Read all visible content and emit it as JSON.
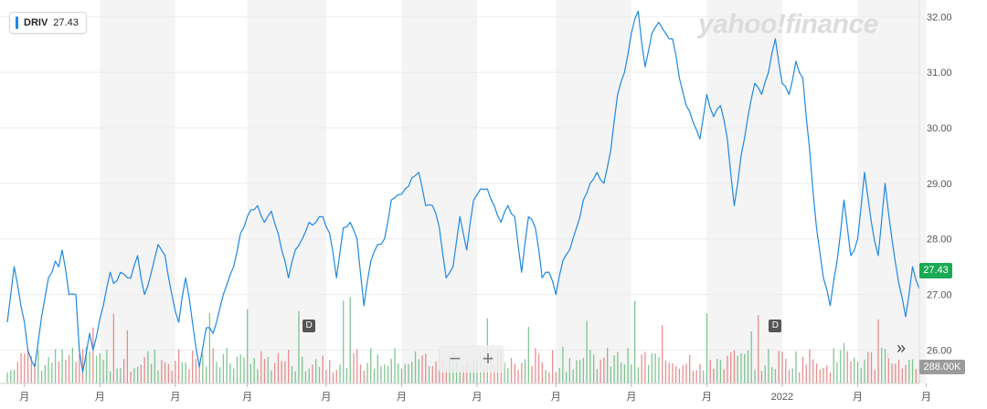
{
  "legend": {
    "symbol": "DRIV",
    "value": "27.43",
    "color": "#1e88e5"
  },
  "watermark": "yahoo!finance",
  "price_tag": "27.43",
  "volume_tag": "288.00K",
  "controls": {
    "zoom_out": "−",
    "zoom_in": "+",
    "fast_forward": "»"
  },
  "dividend_markers": [
    {
      "label": "D",
      "index": 88
    },
    {
      "label": "D",
      "index": 224
    }
  ],
  "chart_data": {
    "type": "line",
    "title": "",
    "xlabel": "",
    "ylabel": "",
    "ylim": [
      25.4,
      32.3
    ],
    "y_ticks": [
      "26.00",
      "27.00",
      "28.00",
      "29.00",
      "30.00",
      "31.00",
      "32.00"
    ],
    "x_ticks": [
      {
        "label": "月",
        "index": 5
      },
      {
        "label": "月",
        "index": 27
      },
      {
        "label": "月",
        "index": 49
      },
      {
        "label": "月",
        "index": 70
      },
      {
        "label": "月",
        "index": 93
      },
      {
        "label": "月",
        "index": 115
      },
      {
        "label": "月",
        "index": 137
      },
      {
        "label": "月",
        "index": 160
      },
      {
        "label": "月",
        "index": 182
      },
      {
        "label": "月",
        "index": 204
      },
      {
        "label": "2022",
        "index": 226
      },
      {
        "label": "月",
        "index": 248
      },
      {
        "label": "月",
        "index": 268
      }
    ],
    "keypoints": [
      [
        0,
        26.5
      ],
      [
        2,
        27.5
      ],
      [
        5,
        26.5
      ],
      [
        6,
        26.0
      ],
      [
        8,
        25.7
      ],
      [
        10,
        26.6
      ],
      [
        12,
        27.3
      ],
      [
        14,
        27.6
      ],
      [
        15,
        27.5
      ],
      [
        16,
        27.8
      ],
      [
        18,
        27.0
      ],
      [
        20,
        27.0
      ],
      [
        21,
        26.0
      ],
      [
        22,
        25.6
      ],
      [
        24,
        26.3
      ],
      [
        25,
        26.0
      ],
      [
        28,
        26.8
      ],
      [
        30,
        27.4
      ],
      [
        31,
        27.2
      ],
      [
        33,
        27.4
      ],
      [
        36,
        27.3
      ],
      [
        38,
        27.7
      ],
      [
        39,
        27.3
      ],
      [
        40,
        27.0
      ],
      [
        42,
        27.4
      ],
      [
        44,
        27.9
      ],
      [
        46,
        27.7
      ],
      [
        48,
        27.0
      ],
      [
        50,
        26.5
      ],
      [
        52,
        27.3
      ],
      [
        54,
        26.5
      ],
      [
        56,
        25.7
      ],
      [
        58,
        26.4
      ],
      [
        60,
        26.3
      ],
      [
        63,
        27.0
      ],
      [
        66,
        27.5
      ],
      [
        68,
        28.1
      ],
      [
        70,
        28.4
      ],
      [
        73,
        28.6
      ],
      [
        75,
        28.3
      ],
      [
        77,
        28.5
      ],
      [
        79,
        28.1
      ],
      [
        81,
        27.6
      ],
      [
        82,
        27.3
      ],
      [
        84,
        27.8
      ],
      [
        86,
        28.0
      ],
      [
        88,
        28.3
      ],
      [
        90,
        28.3
      ],
      [
        92,
        28.4
      ],
      [
        94,
        28.1
      ],
      [
        96,
        27.3
      ],
      [
        98,
        28.2
      ],
      [
        100,
        28.3
      ],
      [
        102,
        28.0
      ],
      [
        104,
        26.8
      ],
      [
        106,
        27.6
      ],
      [
        108,
        27.9
      ],
      [
        110,
        28.0
      ],
      [
        112,
        28.7
      ],
      [
        114,
        28.8
      ],
      [
        116,
        28.9
      ],
      [
        118,
        29.1
      ],
      [
        120,
        29.2
      ],
      [
        122,
        28.6
      ],
      [
        124,
        28.6
      ],
      [
        126,
        28.2
      ],
      [
        128,
        27.3
      ],
      [
        130,
        27.5
      ],
      [
        132,
        28.4
      ],
      [
        134,
        27.8
      ],
      [
        136,
        28.7
      ],
      [
        138,
        28.9
      ],
      [
        140,
        28.9
      ],
      [
        142,
        28.6
      ],
      [
        144,
        28.3
      ],
      [
        146,
        28.6
      ],
      [
        148,
        28.4
      ],
      [
        150,
        27.4
      ],
      [
        152,
        28.4
      ],
      [
        154,
        28.2
      ],
      [
        156,
        27.3
      ],
      [
        158,
        27.4
      ],
      [
        160,
        27.0
      ],
      [
        162,
        27.6
      ],
      [
        164,
        27.8
      ],
      [
        166,
        28.2
      ],
      [
        168,
        28.7
      ],
      [
        170,
        29.0
      ],
      [
        172,
        29.2
      ],
      [
        174,
        29.0
      ],
      [
        176,
        29.6
      ],
      [
        178,
        30.6
      ],
      [
        180,
        31.0
      ],
      [
        182,
        31.7
      ],
      [
        184,
        32.1
      ],
      [
        186,
        31.1
      ],
      [
        188,
        31.7
      ],
      [
        190,
        31.9
      ],
      [
        192,
        31.7
      ],
      [
        194,
        31.6
      ],
      [
        196,
        30.9
      ],
      [
        198,
        30.4
      ],
      [
        200,
        30.1
      ],
      [
        202,
        29.8
      ],
      [
        204,
        30.6
      ],
      [
        206,
        30.2
      ],
      [
        208,
        30.4
      ],
      [
        210,
        29.8
      ],
      [
        212,
        28.6
      ],
      [
        214,
        29.5
      ],
      [
        216,
        30.2
      ],
      [
        218,
        30.8
      ],
      [
        220,
        30.6
      ],
      [
        222,
        31.0
      ],
      [
        224,
        31.6
      ],
      [
        226,
        30.8
      ],
      [
        228,
        30.6
      ],
      [
        230,
        31.2
      ],
      [
        232,
        30.9
      ],
      [
        234,
        29.6
      ],
      [
        236,
        28.2
      ],
      [
        238,
        27.3
      ],
      [
        240,
        26.8
      ],
      [
        242,
        27.6
      ],
      [
        244,
        28.7
      ],
      [
        246,
        27.7
      ],
      [
        248,
        28.0
      ],
      [
        250,
        29.2
      ],
      [
        252,
        28.3
      ],
      [
        254,
        27.7
      ],
      [
        256,
        29.0
      ],
      [
        258,
        28.0
      ],
      [
        260,
        27.2
      ],
      [
        262,
        26.6
      ],
      [
        264,
        27.5
      ],
      [
        266,
        27.1
      ]
    ],
    "n_points": 267,
    "volume_seed": 7
  }
}
